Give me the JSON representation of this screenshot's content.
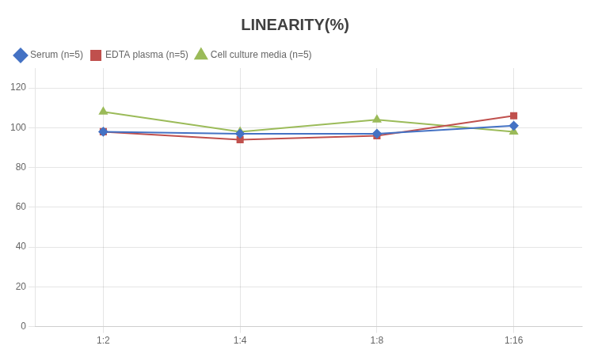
{
  "chart_data": {
    "type": "line",
    "title": "LINEARITY(%)",
    "categories": [
      "1:2",
      "1:4",
      "1:8",
      "1:16"
    ],
    "series": [
      {
        "name": "Serum (n=5)",
        "color": "#4472C4",
        "marker": "diamond",
        "values": [
          98.0,
          97.0,
          97.0,
          101.0
        ]
      },
      {
        "name": "EDTA plasma (n=5)",
        "color": "#C0504D",
        "marker": "square",
        "values": [
          98.0,
          94.0,
          96.0,
          106.0
        ]
      },
      {
        "name": "Cell culture media (n=5)",
        "color": "#9BBB59",
        "marker": "triangle",
        "values": [
          108.0,
          98.0,
          104.0,
          98.0
        ]
      }
    ],
    "ylim": [
      0,
      130
    ],
    "yticks": [
      0,
      20,
      40,
      60,
      80,
      100,
      120
    ],
    "grid": true,
    "legend": "top"
  }
}
